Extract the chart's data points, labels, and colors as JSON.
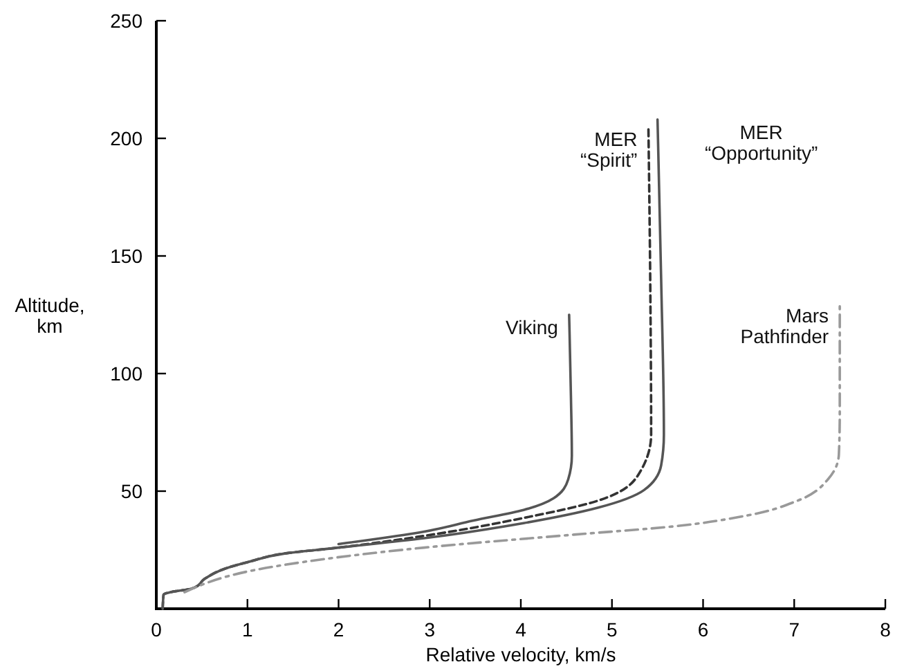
{
  "chart_data": {
    "type": "line",
    "xlabel": "Relative velocity, km/s",
    "ylabel": "Altitude,\nkm",
    "xlim": [
      0,
      8
    ],
    "xticks": [
      0,
      1,
      2,
      3,
      4,
      5,
      6,
      7,
      8
    ],
    "ylim": [
      0,
      250
    ],
    "yticks": [
      50,
      100,
      150,
      200,
      250
    ],
    "grid": false,
    "legend": false,
    "marker": "none",
    "series": [
      {
        "name": "Viking",
        "color": "#555555",
        "line_style": "solid",
        "x": [
          2.0,
          2.94,
          3.48,
          4.03,
          4.36,
          4.52,
          4.56,
          4.55,
          4.53
        ],
        "values": [
          27.5,
          32.8,
          37.5,
          42,
          47,
          55,
          65,
          90,
          125
        ]
      },
      {
        "name": "MER\n“Spirit”",
        "color": "#333333",
        "line_style": "dashed",
        "x": [
          0.07,
          0.08,
          0.15,
          0.37,
          0.42,
          0.53,
          0.75,
          1.02,
          1.41,
          2.0,
          2.94,
          4.03,
          4.85,
          5.29,
          5.43,
          5.42,
          5.4
        ],
        "values": [
          0,
          6,
          7,
          8.4,
          9,
          12.7,
          17,
          20,
          23.5,
          26,
          31,
          38.6,
          46,
          57,
          74,
          140,
          205
        ]
      },
      {
        "name": "MER\n“Opportunity”",
        "color": "#555555",
        "line_style": "solid",
        "x": [
          0.07,
          0.08,
          0.15,
          0.37,
          0.42,
          0.53,
          0.75,
          1.02,
          1.41,
          2.0,
          2.94,
          4.03,
          4.85,
          5.35,
          5.54,
          5.57,
          5.54,
          5.5
        ],
        "values": [
          0,
          6,
          7,
          8.4,
          9,
          12.7,
          17,
          20,
          23.5,
          26,
          30,
          36.4,
          43,
          50.4,
          61,
          74,
          140,
          208
        ]
      },
      {
        "name": "Mars\nPathfinder",
        "color": "#999999",
        "line_style": "dashdot",
        "x": [
          0.31,
          1.3,
          2.94,
          4.58,
          5.67,
          6.49,
          7.04,
          7.37,
          7.49,
          7.5,
          7.5
        ],
        "values": [
          7,
          18,
          26,
          31.5,
          35,
          39.7,
          46,
          55,
          65.5,
          83,
          130
        ]
      }
    ]
  }
}
